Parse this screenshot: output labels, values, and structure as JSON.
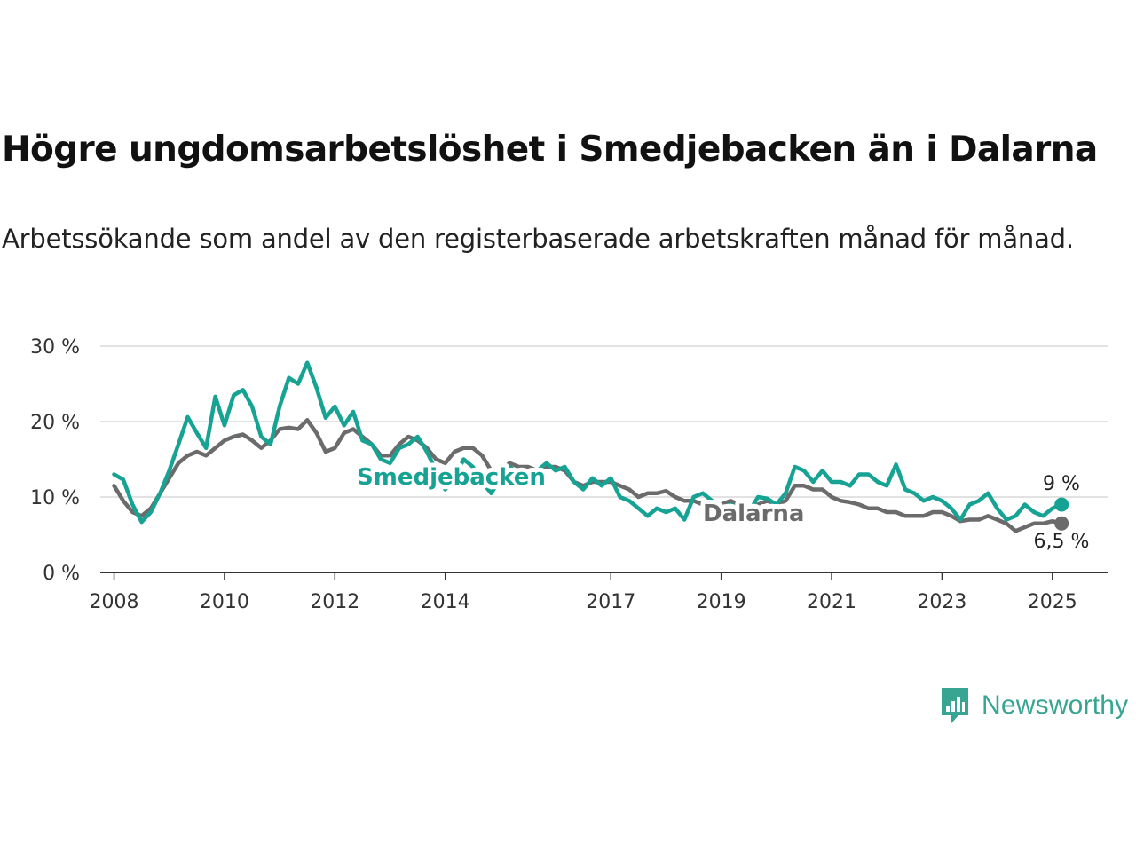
{
  "title": "Högre ungdomsarbetslöshet i Smedjebacken än i Dalarna",
  "subtitle": "Arbetssökande som andel av den registerbaserade arbetskraften månad för månad.",
  "brand": {
    "name": "Newsworthy",
    "icon": "newsworthy-logo-icon"
  },
  "colors": {
    "smedjebacken": "#16a394",
    "dalarna": "#6b6b6b",
    "grid": "#d9d9d9",
    "axis": "#333333"
  },
  "chart_data": {
    "type": "line",
    "title": "Högre ungdomsarbetslöshet i Smedjebacken än i Dalarna",
    "subtitle": "Arbetssökande som andel av den registerbaserade arbetskraften månad för månad.",
    "xlabel": "",
    "ylabel": "",
    "x_ticks": [
      "2008",
      "2010",
      "2012",
      "2014",
      "2017",
      "2019",
      "2021",
      "2023",
      "2025"
    ],
    "y_ticks": [
      "0 %",
      "10 %",
      "20 %",
      "30 %"
    ],
    "ylim": [
      0,
      30
    ],
    "xlim": [
      "2007-10",
      "2026-01"
    ],
    "grid": true,
    "legend": "inline labels",
    "series": [
      {
        "name": "Smedjebacken",
        "color": "#16a394",
        "end_label": "9 %",
        "points": [
          [
            "2008-01",
            13.0
          ],
          [
            "2008-03",
            12.3
          ],
          [
            "2008-05",
            9.0
          ],
          [
            "2008-07",
            6.7
          ],
          [
            "2008-09",
            8.0
          ],
          [
            "2008-11",
            10.5
          ],
          [
            "2009-01",
            13.5
          ],
          [
            "2009-03",
            17.0
          ],
          [
            "2009-05",
            20.6
          ],
          [
            "2009-07",
            18.5
          ],
          [
            "2009-09",
            16.5
          ],
          [
            "2009-11",
            23.3
          ],
          [
            "2010-01",
            19.5
          ],
          [
            "2010-03",
            23.5
          ],
          [
            "2010-05",
            24.2
          ],
          [
            "2010-07",
            22.0
          ],
          [
            "2010-09",
            18.0
          ],
          [
            "2010-11",
            17.0
          ],
          [
            "2011-01",
            22.0
          ],
          [
            "2011-03",
            25.8
          ],
          [
            "2011-05",
            25.0
          ],
          [
            "2011-07",
            27.8
          ],
          [
            "2011-09",
            24.5
          ],
          [
            "2011-11",
            20.5
          ],
          [
            "2012-01",
            22.0
          ],
          [
            "2012-03",
            19.5
          ],
          [
            "2012-05",
            21.3
          ],
          [
            "2012-07",
            17.5
          ],
          [
            "2012-09",
            17.0
          ],
          [
            "2012-11",
            15.0
          ],
          [
            "2013-01",
            14.5
          ],
          [
            "2013-03",
            16.5
          ],
          [
            "2013-05",
            17.0
          ],
          [
            "2013-07",
            18.0
          ],
          [
            "2013-09",
            16.0
          ],
          [
            "2013-11",
            13.5
          ],
          [
            "2014-01",
            11.0
          ],
          [
            "2014-03",
            12.5
          ],
          [
            "2014-05",
            15.0
          ],
          [
            "2014-07",
            14.0
          ],
          [
            "2014-09",
            12.0
          ],
          [
            "2014-11",
            10.5
          ],
          [
            "2015-01",
            12.5
          ],
          [
            "2015-03",
            14.0
          ],
          [
            "2015-05",
            13.0
          ],
          [
            "2015-07",
            12.5
          ],
          [
            "2015-09",
            13.5
          ],
          [
            "2015-11",
            14.5
          ],
          [
            "2016-01",
            13.5
          ],
          [
            "2016-03",
            14.0
          ],
          [
            "2016-05",
            12.0
          ],
          [
            "2016-07",
            11.0
          ],
          [
            "2016-09",
            12.5
          ],
          [
            "2016-11",
            11.5
          ],
          [
            "2017-01",
            12.5
          ],
          [
            "2017-03",
            10.0
          ],
          [
            "2017-05",
            9.5
          ],
          [
            "2017-07",
            8.5
          ],
          [
            "2017-09",
            7.5
          ],
          [
            "2017-11",
            8.5
          ],
          [
            "2018-01",
            8.0
          ],
          [
            "2018-03",
            8.5
          ],
          [
            "2018-05",
            7.0
          ],
          [
            "2018-07",
            10.0
          ],
          [
            "2018-09",
            10.5
          ],
          [
            "2018-11",
            9.5
          ],
          [
            "2019-01",
            8.5
          ],
          [
            "2019-03",
            9.0
          ],
          [
            "2019-05",
            8.5
          ],
          [
            "2019-07",
            8.0
          ],
          [
            "2019-09",
            10.0
          ],
          [
            "2019-11",
            9.8
          ],
          [
            "2020-01",
            9.0
          ],
          [
            "2020-03",
            10.5
          ],
          [
            "2020-05",
            14.0
          ],
          [
            "2020-07",
            13.5
          ],
          [
            "2020-09",
            12.0
          ],
          [
            "2020-11",
            13.5
          ],
          [
            "2021-01",
            12.0
          ],
          [
            "2021-03",
            12.0
          ],
          [
            "2021-05",
            11.5
          ],
          [
            "2021-07",
            13.0
          ],
          [
            "2021-09",
            13.0
          ],
          [
            "2021-11",
            12.0
          ],
          [
            "2022-01",
            11.5
          ],
          [
            "2022-03",
            14.3
          ],
          [
            "2022-05",
            11.0
          ],
          [
            "2022-07",
            10.5
          ],
          [
            "2022-09",
            9.5
          ],
          [
            "2022-11",
            10.0
          ],
          [
            "2023-01",
            9.5
          ],
          [
            "2023-03",
            8.5
          ],
          [
            "2023-05",
            7.0
          ],
          [
            "2023-07",
            9.0
          ],
          [
            "2023-09",
            9.5
          ],
          [
            "2023-11",
            10.5
          ],
          [
            "2024-01",
            8.5
          ],
          [
            "2024-03",
            7.0
          ],
          [
            "2024-05",
            7.5
          ],
          [
            "2024-07",
            9.0
          ],
          [
            "2024-09",
            8.0
          ],
          [
            "2024-11",
            7.5
          ],
          [
            "2025-01",
            8.5
          ],
          [
            "2025-03",
            9.0
          ]
        ]
      },
      {
        "name": "Dalarna",
        "color": "#6b6b6b",
        "end_label": "6,5 %",
        "points": [
          [
            "2008-01",
            11.5
          ],
          [
            "2008-03",
            9.5
          ],
          [
            "2008-05",
            8.0
          ],
          [
            "2008-07",
            7.5
          ],
          [
            "2008-09",
            8.5
          ],
          [
            "2008-11",
            10.5
          ],
          [
            "2009-01",
            12.5
          ],
          [
            "2009-03",
            14.5
          ],
          [
            "2009-05",
            15.5
          ],
          [
            "2009-07",
            16.0
          ],
          [
            "2009-09",
            15.5
          ],
          [
            "2009-11",
            16.5
          ],
          [
            "2010-01",
            17.5
          ],
          [
            "2010-03",
            18.0
          ],
          [
            "2010-05",
            18.3
          ],
          [
            "2010-07",
            17.5
          ],
          [
            "2010-09",
            16.5
          ],
          [
            "2010-11",
            17.5
          ],
          [
            "2011-01",
            19.0
          ],
          [
            "2011-03",
            19.2
          ],
          [
            "2011-05",
            19.0
          ],
          [
            "2011-07",
            20.2
          ],
          [
            "2011-09",
            18.5
          ],
          [
            "2011-11",
            16.0
          ],
          [
            "2012-01",
            16.5
          ],
          [
            "2012-03",
            18.5
          ],
          [
            "2012-05",
            19.0
          ],
          [
            "2012-07",
            18.0
          ],
          [
            "2012-09",
            17.0
          ],
          [
            "2012-11",
            15.5
          ],
          [
            "2013-01",
            15.5
          ],
          [
            "2013-03",
            17.0
          ],
          [
            "2013-05",
            18.0
          ],
          [
            "2013-07",
            17.5
          ],
          [
            "2013-09",
            16.5
          ],
          [
            "2013-11",
            15.0
          ],
          [
            "2014-01",
            14.5
          ],
          [
            "2014-03",
            16.0
          ],
          [
            "2014-05",
            16.5
          ],
          [
            "2014-07",
            16.5
          ],
          [
            "2014-09",
            15.5
          ],
          [
            "2014-11",
            13.5
          ],
          [
            "2015-01",
            13.5
          ],
          [
            "2015-03",
            14.5
          ],
          [
            "2015-05",
            14.0
          ],
          [
            "2015-07",
            14.0
          ],
          [
            "2015-09",
            13.5
          ],
          [
            "2015-11",
            14.0
          ],
          [
            "2016-01",
            14.0
          ],
          [
            "2016-03",
            13.5
          ],
          [
            "2016-05",
            12.0
          ],
          [
            "2016-07",
            11.5
          ],
          [
            "2016-09",
            12.0
          ],
          [
            "2016-11",
            12.0
          ],
          [
            "2017-01",
            12.0
          ],
          [
            "2017-03",
            11.5
          ],
          [
            "2017-05",
            11.0
          ],
          [
            "2017-07",
            10.0
          ],
          [
            "2017-09",
            10.5
          ],
          [
            "2017-11",
            10.5
          ],
          [
            "2018-01",
            10.8
          ],
          [
            "2018-03",
            10.0
          ],
          [
            "2018-05",
            9.5
          ],
          [
            "2018-07",
            9.5
          ],
          [
            "2018-09",
            9.0
          ],
          [
            "2018-11",
            9.0
          ],
          [
            "2019-01",
            9.0
          ],
          [
            "2019-03",
            9.5
          ],
          [
            "2019-05",
            9.0
          ],
          [
            "2019-07",
            8.5
          ],
          [
            "2019-09",
            9.0
          ],
          [
            "2019-11",
            9.5
          ],
          [
            "2020-01",
            9.0
          ],
          [
            "2020-03",
            9.5
          ],
          [
            "2020-05",
            11.5
          ],
          [
            "2020-07",
            11.5
          ],
          [
            "2020-09",
            11.0
          ],
          [
            "2020-11",
            11.0
          ],
          [
            "2021-01",
            10.0
          ],
          [
            "2021-03",
            9.5
          ],
          [
            "2021-05",
            9.3
          ],
          [
            "2021-07",
            9.0
          ],
          [
            "2021-09",
            8.5
          ],
          [
            "2021-11",
            8.5
          ],
          [
            "2022-01",
            8.0
          ],
          [
            "2022-03",
            8.0
          ],
          [
            "2022-05",
            7.5
          ],
          [
            "2022-07",
            7.5
          ],
          [
            "2022-09",
            7.5
          ],
          [
            "2022-11",
            8.0
          ],
          [
            "2023-01",
            8.0
          ],
          [
            "2023-03",
            7.5
          ],
          [
            "2023-05",
            6.8
          ],
          [
            "2023-07",
            7.0
          ],
          [
            "2023-09",
            7.0
          ],
          [
            "2023-11",
            7.5
          ],
          [
            "2024-01",
            7.0
          ],
          [
            "2024-03",
            6.5
          ],
          [
            "2024-05",
            5.5
          ],
          [
            "2024-07",
            6.0
          ],
          [
            "2024-09",
            6.5
          ],
          [
            "2024-11",
            6.5
          ],
          [
            "2025-01",
            6.8
          ],
          [
            "2025-03",
            6.5
          ]
        ]
      }
    ]
  }
}
